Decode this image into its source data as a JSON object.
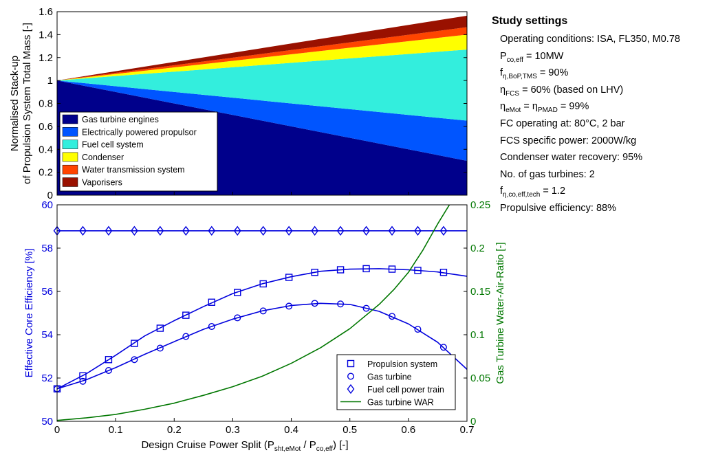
{
  "chart_data": [
    {
      "type": "area",
      "stacked": true,
      "ylabel_line1": "Normalised Stack-up",
      "ylabel_line2": "of Propulsion System Total Mass [-]",
      "xlim": [
        0,
        0.7
      ],
      "ylim": [
        0,
        1.6
      ],
      "yticks": [
        "0",
        "0.2",
        "0.4",
        "0.6",
        "0.8",
        "1",
        "1.2",
        "1.4",
        "1.6"
      ],
      "x": [
        0,
        0.7
      ],
      "series": [
        {
          "name": "Gas turbine engines",
          "color": "#00008B",
          "values": [
            1.0,
            0.3
          ]
        },
        {
          "name": "Electrically powered propulsor",
          "color": "#0055FF",
          "values": [
            0.0,
            0.35
          ]
        },
        {
          "name": "Fuel cell system",
          "color": "#33EEDD",
          "values": [
            0.0,
            0.62
          ]
        },
        {
          "name": "Condenser",
          "color": "#FFFF00",
          "values": [
            0.0,
            0.13
          ]
        },
        {
          "name": "Water transmission system",
          "color": "#FF4400",
          "values": [
            0.0,
            0.065
          ]
        },
        {
          "name": "Vaporisers",
          "color": "#991100",
          "values": [
            0.0,
            0.1
          ]
        }
      ],
      "legend_position": "bottom-left"
    },
    {
      "type": "line",
      "xlabel": "Design Cruise Power Split (P",
      "xlabel_sub1": "sht,eMot",
      "xlabel_mid": " / P",
      "xlabel_sub2": "co,eff",
      "xlabel_end": ") [-]",
      "ylabel": "Effective Core Efficiency [%]",
      "y2label": "Gas Turbine Water-Air-Ratio [-]",
      "xlim": [
        0,
        0.7
      ],
      "ylim": [
        50,
        60
      ],
      "y2lim": [
        0,
        0.25
      ],
      "xticks": [
        "0",
        "0.1",
        "0.2",
        "0.3",
        "0.4",
        "0.5",
        "0.6",
        "0.7"
      ],
      "yticks": [
        "50",
        "52",
        "54",
        "56",
        "58",
        "60"
      ],
      "y2ticks": [
        "0",
        "0.05",
        "0.1",
        "0.15",
        "0.2",
        "0.25"
      ],
      "left_axis_color": "#0000DD",
      "right_axis_color": "#007700",
      "series": [
        {
          "name": "Propulsion system",
          "marker": "square",
          "axis": "left",
          "color": "#0000DD",
          "x": [
            0,
            0.044,
            0.088,
            0.132,
            0.176,
            0.22,
            0.264,
            0.308,
            0.352,
            0.396,
            0.44,
            0.484,
            0.528,
            0.572,
            0.616,
            0.66
          ],
          "values": [
            51.5,
            52.1,
            52.85,
            53.6,
            54.3,
            54.9,
            55.5,
            55.95,
            56.35,
            56.65,
            56.88,
            57.0,
            57.05,
            57.03,
            56.97,
            56.88
          ],
          "line_x": [
            0,
            0.05,
            0.1,
            0.15,
            0.2,
            0.25,
            0.3,
            0.35,
            0.4,
            0.45,
            0.5,
            0.55,
            0.6,
            0.65,
            0.7
          ],
          "line_values": [
            51.5,
            52.2,
            53.05,
            53.95,
            54.65,
            55.3,
            55.9,
            56.35,
            56.68,
            56.93,
            57.03,
            57.05,
            57.0,
            56.9,
            56.7
          ]
        },
        {
          "name": "Gas turbine",
          "marker": "circle",
          "axis": "left",
          "color": "#0000DD",
          "x": [
            0,
            0.044,
            0.088,
            0.132,
            0.176,
            0.22,
            0.264,
            0.308,
            0.352,
            0.396,
            0.44,
            0.484,
            0.528,
            0.572,
            0.616,
            0.66
          ],
          "values": [
            51.5,
            51.85,
            52.35,
            52.85,
            53.38,
            53.92,
            54.38,
            54.78,
            55.1,
            55.32,
            55.45,
            55.42,
            55.22,
            54.85,
            54.25,
            53.42
          ],
          "line_x": [
            0,
            0.05,
            0.1,
            0.15,
            0.2,
            0.25,
            0.3,
            0.35,
            0.4,
            0.45,
            0.5,
            0.55,
            0.6,
            0.65,
            0.7
          ],
          "line_values": [
            51.5,
            51.92,
            52.48,
            53.1,
            53.68,
            54.25,
            54.72,
            55.1,
            55.35,
            55.45,
            55.4,
            55.08,
            54.5,
            53.65,
            52.4
          ]
        },
        {
          "name": "Fuel cell power train",
          "marker": "diamond",
          "axis": "left",
          "color": "#0000DD",
          "x": [
            0,
            0.044,
            0.088,
            0.132,
            0.176,
            0.22,
            0.264,
            0.308,
            0.352,
            0.396,
            0.44,
            0.484,
            0.528,
            0.572,
            0.616,
            0.66
          ],
          "values": [
            58.8,
            58.8,
            58.8,
            58.8,
            58.8,
            58.8,
            58.8,
            58.8,
            58.8,
            58.8,
            58.8,
            58.8,
            58.8,
            58.8,
            58.8,
            58.8
          ],
          "line_x": [
            0,
            0.7
          ],
          "line_values": [
            58.8,
            58.8
          ]
        },
        {
          "name": "Gas turbine WAR",
          "marker": "none",
          "axis": "right",
          "color": "#007700",
          "line_x": [
            0,
            0.05,
            0.1,
            0.15,
            0.2,
            0.25,
            0.3,
            0.35,
            0.4,
            0.45,
            0.5,
            0.55,
            0.575,
            0.6,
            0.625,
            0.65,
            0.67,
            0.685,
            0.7
          ],
          "line_values": [
            0.001,
            0.004,
            0.008,
            0.014,
            0.021,
            0.03,
            0.04,
            0.052,
            0.067,
            0.085,
            0.107,
            0.135,
            0.152,
            0.172,
            0.198,
            0.228,
            0.25,
            0.265,
            0.285
          ]
        }
      ],
      "legend_position": "bottom-right"
    }
  ],
  "settings": {
    "title": "Study settings",
    "lines": [
      {
        "main": "Operating conditions: ISA, FL350, M0.78"
      },
      {
        "pre": "P",
        "sub": "co,eff",
        "post": " = 10MW"
      },
      {
        "pre": "f",
        "sub": "η,BoP,TMS",
        "post": " = 90%"
      },
      {
        "pre": "η",
        "sub": "FCS",
        "post": " =  60% (based on LHV)"
      },
      {
        "pre": "η",
        "sub": "eMot",
        "post": " = η",
        "sub2": "PMAD",
        "post2": " =  99%"
      },
      {
        "main": "FC operating at: 80°C, 2 bar"
      },
      {
        "main": "FCS specific power: 2000W/kg"
      },
      {
        "main": "Condenser water recovery: 95%"
      },
      {
        "main": "No. of gas turbines: 2"
      },
      {
        "pre": "f",
        "sub": "η,co,eff,tech",
        "post": " = 1.2"
      },
      {
        "main": "Propulsive efficiency: 88%"
      }
    ]
  }
}
